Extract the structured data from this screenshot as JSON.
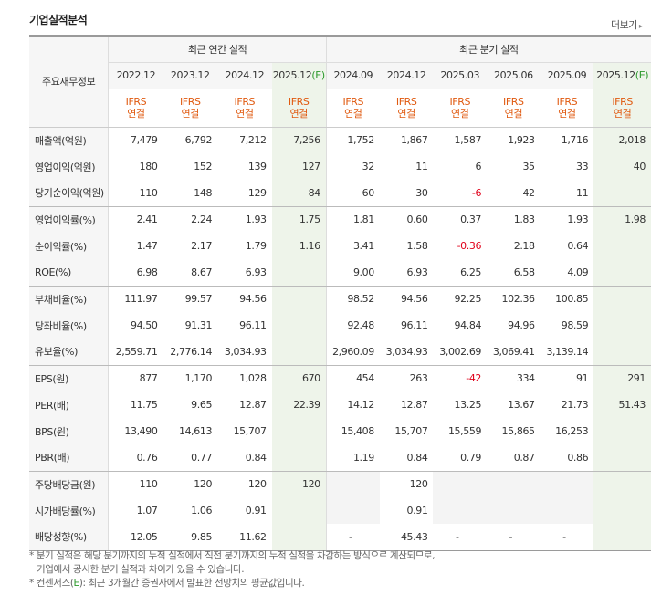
{
  "header": {
    "title": "기업실적분석",
    "more_label": "더보기"
  },
  "table": {
    "row_header_label": "주요재무정보",
    "annual_label": "최근 연간 실적",
    "quarter_label": "최근 분기 실적",
    "annual_periods": [
      "2022.12",
      "2023.12",
      "2024.12",
      "2025.12"
    ],
    "quarter_periods": [
      "2024.09",
      "2024.12",
      "2025.03",
      "2025.06",
      "2025.09",
      "2025.12"
    ],
    "estimate_mark": "(E)",
    "ifrs_top": "IFRS",
    "ifrs_bottom": "연결",
    "rows": [
      {
        "label": "매출액(억원)",
        "values": [
          "7,479",
          "6,792",
          "7,212",
          "7,256",
          "1,752",
          "1,867",
          "1,587",
          "1,923",
          "1,716",
          "2,018"
        ]
      },
      {
        "label": "영업이익(억원)",
        "values": [
          "180",
          "152",
          "139",
          "127",
          "32",
          "11",
          "6",
          "35",
          "33",
          "40"
        ]
      },
      {
        "label": "당기순이익(억원)",
        "values": [
          "110",
          "148",
          "129",
          "84",
          "60",
          "30",
          "-6",
          "42",
          "11",
          ""
        ]
      },
      {
        "label": "영업이익률(%)",
        "values": [
          "2.41",
          "2.24",
          "1.93",
          "1.75",
          "1.81",
          "0.60",
          "0.37",
          "1.83",
          "1.93",
          "1.98"
        ]
      },
      {
        "label": "순이익률(%)",
        "values": [
          "1.47",
          "2.17",
          "1.79",
          "1.16",
          "3.41",
          "1.58",
          "-0.36",
          "2.18",
          "0.64",
          ""
        ]
      },
      {
        "label": "ROE(%)",
        "values": [
          "6.98",
          "8.67",
          "6.93",
          "",
          "9.00",
          "6.93",
          "6.25",
          "6.58",
          "4.09",
          ""
        ]
      },
      {
        "label": "부채비율(%)",
        "values": [
          "111.97",
          "99.57",
          "94.56",
          "",
          "98.52",
          "94.56",
          "92.25",
          "102.36",
          "100.85",
          ""
        ]
      },
      {
        "label": "당좌비율(%)",
        "values": [
          "94.50",
          "91.31",
          "96.11",
          "",
          "92.48",
          "96.11",
          "94.84",
          "94.96",
          "98.59",
          ""
        ]
      },
      {
        "label": "유보율(%)",
        "values": [
          "2,559.71",
          "2,776.14",
          "3,034.93",
          "",
          "2,960.09",
          "3,034.93",
          "3,002.69",
          "3,069.41",
          "3,139.14",
          ""
        ]
      },
      {
        "label": "EPS(원)",
        "values": [
          "877",
          "1,170",
          "1,028",
          "670",
          "454",
          "263",
          "-42",
          "334",
          "91",
          "291"
        ]
      },
      {
        "label": "PER(배)",
        "values": [
          "11.75",
          "9.65",
          "12.87",
          "22.39",
          "14.12",
          "12.87",
          "13.25",
          "13.67",
          "21.73",
          "51.43"
        ]
      },
      {
        "label": "BPS(원)",
        "values": [
          "13,490",
          "14,613",
          "15,707",
          "",
          "15,408",
          "15,707",
          "15,559",
          "15,865",
          "16,253",
          ""
        ]
      },
      {
        "label": "PBR(배)",
        "values": [
          "0.76",
          "0.77",
          "0.84",
          "",
          "1.19",
          "0.84",
          "0.79",
          "0.87",
          "0.86",
          ""
        ]
      },
      {
        "label": "주당배당금(원)",
        "values": [
          "110",
          "120",
          "120",
          "120",
          "",
          "120",
          "",
          "",
          "",
          ""
        ]
      },
      {
        "label": "시가배당률(%)",
        "values": [
          "1.07",
          "1.06",
          "0.91",
          "",
          "",
          "0.91",
          "",
          "",
          "",
          ""
        ]
      },
      {
        "label": "배당성향(%)",
        "values": [
          "12.05",
          "9.85",
          "11.62",
          "",
          "-",
          "45.43",
          "-",
          "-",
          "-",
          ""
        ]
      }
    ]
  },
  "notes": {
    "line1": "* 분기 실적은 해당 분기까지의 누적 실적에서 직전 분기까지의 누적 실적을 차감하는 방식으로 계산되므로,",
    "line2": "기업에서 공시한 분기 실적과 차이가 있을 수 있습니다.",
    "line3_pre": "* 컨센서스(",
    "line3_e": "E",
    "line3_post": "): 최근 3개월간 증권사에서 발표한 전망치의 평균값입니다."
  }
}
